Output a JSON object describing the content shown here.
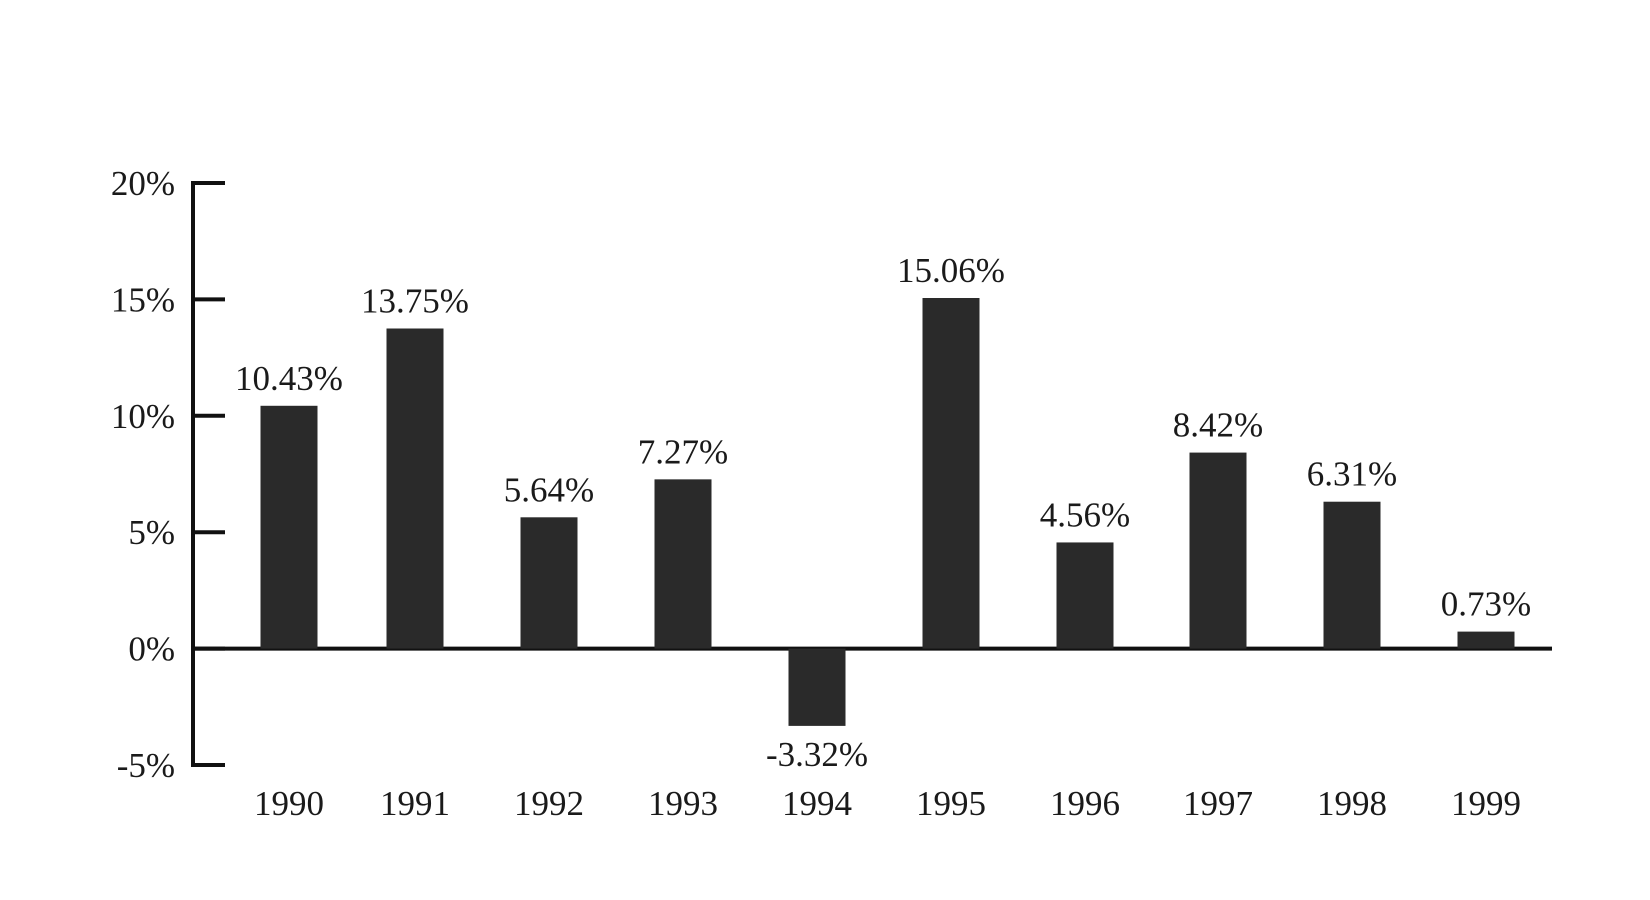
{
  "chart_data": {
    "type": "bar",
    "categories": [
      "1990",
      "1991",
      "1992",
      "1993",
      "1994",
      "1995",
      "1996",
      "1997",
      "1998",
      "1999"
    ],
    "values": [
      10.43,
      13.75,
      5.64,
      7.27,
      -3.32,
      15.06,
      4.56,
      8.42,
      6.31,
      0.73
    ],
    "data_labels": [
      "10.43%",
      "13.75%",
      "5.64%",
      "7.27%",
      "-3.32%",
      "15.06%",
      "4.56%",
      "8.42%",
      "6.31%",
      "0.73%"
    ],
    "y_ticks": [
      20,
      15,
      10,
      5,
      0,
      -5
    ],
    "y_tick_labels": [
      "20%",
      "15%",
      "10%",
      "5%",
      "0%",
      "-5%"
    ],
    "ylim": [
      -5,
      20
    ],
    "title": "",
    "xlabel": "",
    "ylabel": "",
    "grid": false,
    "bar_color": "#2a2a2a",
    "axis_color": "#111111"
  }
}
